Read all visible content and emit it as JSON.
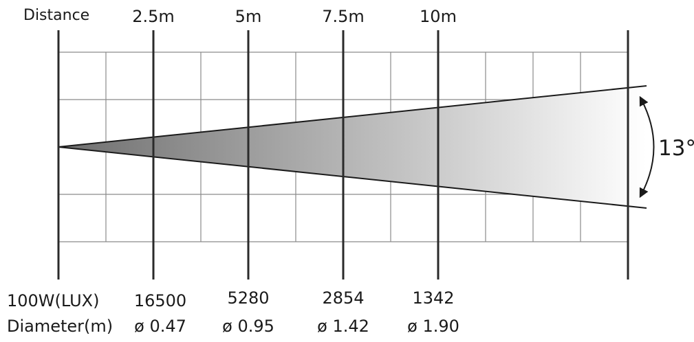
{
  "header": {
    "distance_label": "Distance",
    "distances": [
      "2.5m",
      "5m",
      "7.5m",
      "10m"
    ]
  },
  "angle_label": "13°",
  "rows": {
    "lux_label": "100W(LUX)",
    "lux_values": [
      "16500",
      "5280",
      "2854",
      "1342"
    ],
    "diameter_label": "Diameter(m)",
    "diameter_values": [
      "ø 0.47",
      "ø 0.95",
      "ø 1.42",
      "ø 1.90"
    ]
  },
  "colors": {
    "beam_start": "#6e6e6e",
    "beam_end": "#ffffff",
    "grid": "#8a8a8a",
    "ink": "#1a1a1a"
  }
}
